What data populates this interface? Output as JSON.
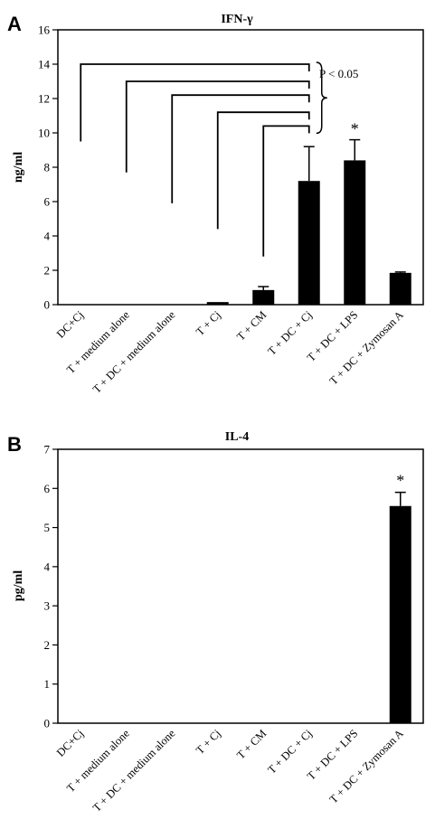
{
  "chart_data": [
    {
      "panel": "A",
      "type": "bar",
      "title": "IFN-γ",
      "xlabel": "",
      "ylabel": "ng/ml",
      "ylim": [
        0,
        16
      ],
      "yticks": [
        0,
        2,
        4,
        6,
        8,
        10,
        12,
        14,
        16
      ],
      "categories": [
        "DC+Cj",
        "T + medium alone",
        "T + DC + medium alone",
        "T + Cj",
        "T + CM",
        "T + DC + Cj",
        "T + DC + LPS",
        "T + DC + Zymosan A"
      ],
      "values": [
        0,
        0,
        0,
        0.15,
        0.85,
        7.2,
        8.4,
        1.85
      ],
      "errors": [
        0,
        0,
        0,
        0,
        0.2,
        2.0,
        1.2,
        0.05
      ],
      "significance": [
        "",
        "",
        "",
        "",
        "",
        "",
        "*",
        ""
      ],
      "bracket_annotation": "P < 0.05",
      "bar_color": "#000000"
    },
    {
      "panel": "B",
      "type": "bar",
      "title": "IL-4",
      "xlabel": "",
      "ylabel": "pg/ml",
      "ylim": [
        0,
        7
      ],
      "yticks": [
        0,
        1,
        2,
        3,
        4,
        5,
        6,
        7
      ],
      "categories": [
        "DC+Cj",
        "T + medium alone",
        "T + DC + medium alone",
        "T + Cj",
        "T + CM",
        "T + DC + Cj",
        "T + DC + LPS",
        "T + DC + Zymosan A"
      ],
      "values": [
        0,
        0,
        0,
        0,
        0,
        0,
        0,
        5.55
      ],
      "errors": [
        0,
        0,
        0,
        0,
        0,
        0,
        0,
        0.35
      ],
      "significance": [
        "",
        "",
        "",
        "",
        "",
        "",
        "",
        "*"
      ],
      "bar_color": "#000000"
    }
  ]
}
